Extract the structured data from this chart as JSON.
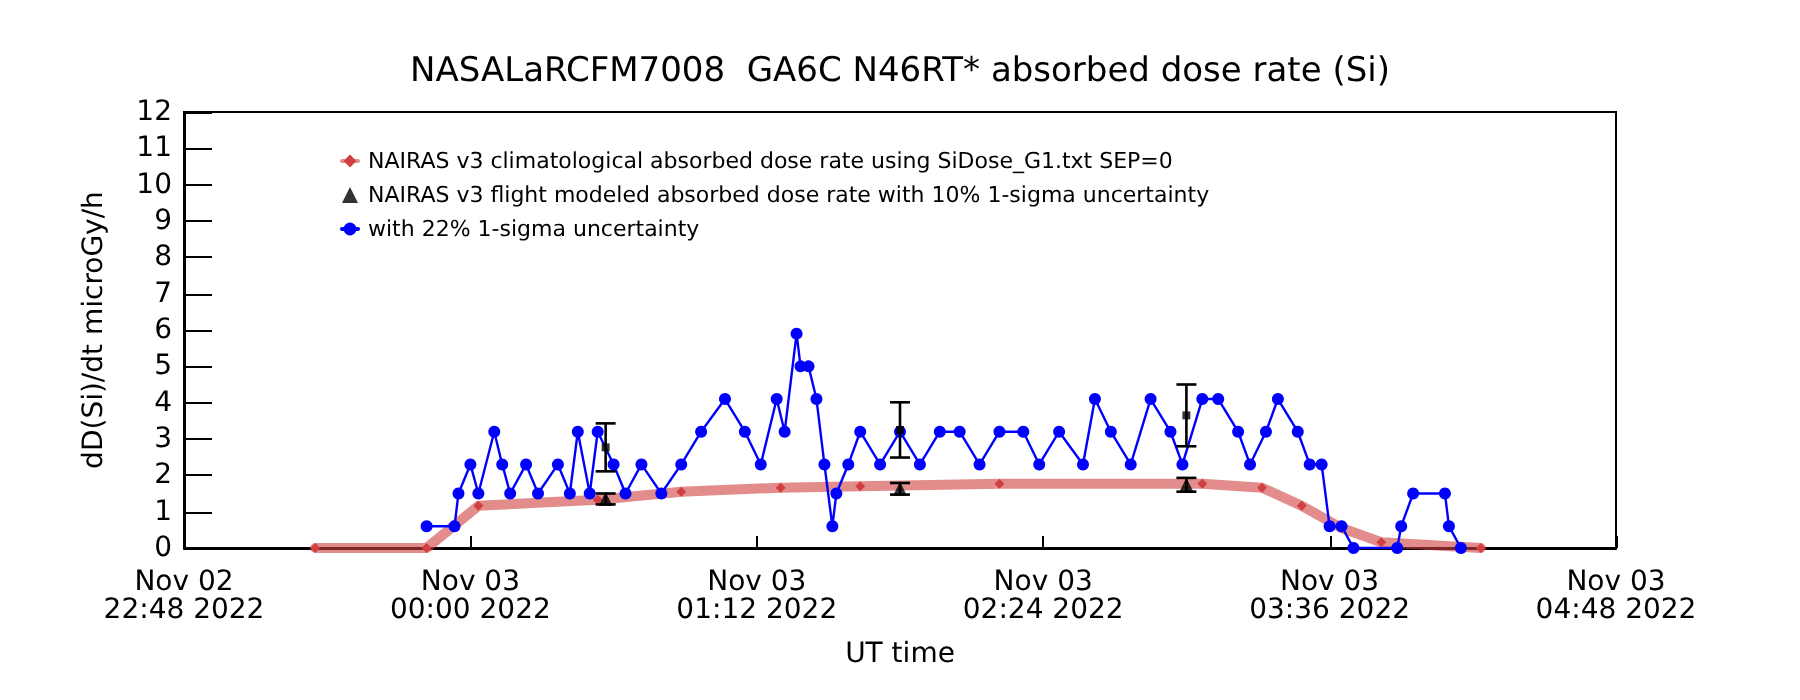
{
  "chart_data": {
    "type": "line",
    "title": "NASALaRCFM7008  GA6C N46RT* absorbed dose rate (Si)",
    "xlabel": "UT time",
    "ylabel": "dD(Si)/dt microGy/h",
    "xlim": [
      "2022-11-02T22:48",
      "2022-11-03T04:48"
    ],
    "xticks": [
      {
        "value": "2022-11-02T22:48",
        "label": "Nov 02\n22:48 2022"
      },
      {
        "value": "2022-11-03T00:00",
        "label": "Nov 03\n00:00 2022"
      },
      {
        "value": "2022-11-03T01:12",
        "label": "Nov 03\n01:12 2022"
      },
      {
        "value": "2022-11-03T02:24",
        "label": "Nov 03\n02:24 2022"
      },
      {
        "value": "2022-11-03T03:36",
        "label": "Nov 03\n03:36 2022"
      },
      {
        "value": "2022-11-03T04:48",
        "label": "Nov 03\n04:48 2022"
      }
    ],
    "ylim": [
      0,
      12
    ],
    "yticks": [
      0,
      1,
      2,
      3,
      4,
      5,
      6,
      7,
      8,
      9,
      10,
      11,
      12
    ],
    "grid": false,
    "legend": "top left",
    "series": [
      {
        "name": "NAIRAS v3 climatological absorbed dose rate using SiDose_G1.txt SEP=0",
        "marker": "diamond",
        "color": "#d04040",
        "x": [
          "2022-11-02T23:21",
          "2022-11-02T23:49",
          "2022-11-03T00:02",
          "2022-11-03T00:32",
          "2022-11-03T00:53",
          "2022-11-03T01:18",
          "2022-11-03T01:38",
          "2022-11-03T02:13",
          "2022-11-03T03:04",
          "2022-11-03T03:19",
          "2022-11-03T03:29",
          "2022-11-03T03:39",
          "2022-11-03T03:49",
          "2022-11-03T04:14"
        ],
        "values": [
          0,
          0,
          1.16,
          1.33,
          1.55,
          1.66,
          1.7,
          1.77,
          1.77,
          1.66,
          1.16,
          0.55,
          0.16,
          0
        ]
      },
      {
        "name": "NAIRAS v3 flight modeled absorbed dose rate with 10% 1-sigma uncertainty",
        "type": "scatter",
        "marker": "triangle",
        "color": "#000000",
        "x": [
          "2022-11-03T00:34",
          "2022-11-03T01:48",
          "2022-11-03T03:00"
        ],
        "values": [
          1.35,
          1.63,
          1.74
        ],
        "errors": [
          0.15,
          0.16,
          0.19
        ]
      },
      {
        "name": "with 22% 1-sigma uncertainty",
        "marker": "circle",
        "color": "#0000ff",
        "x": [
          "2022-11-02T23:49",
          "2022-11-02T23:56",
          "2022-11-02T23:57",
          "2022-11-03T00:00",
          "2022-11-03T00:02",
          "2022-11-03T00:06",
          "2022-11-03T00:08",
          "2022-11-03T00:10",
          "2022-11-03T00:14",
          "2022-11-03T00:17",
          "2022-11-03T00:22",
          "2022-11-03T00:25",
          "2022-11-03T00:27",
          "2022-11-03T00:30",
          "2022-11-03T00:32",
          "2022-11-03T00:36",
          "2022-11-03T00:39",
          "2022-11-03T00:43",
          "2022-11-03T00:48",
          "2022-11-03T00:53",
          "2022-11-03T00:58",
          "2022-11-03T01:04",
          "2022-11-03T01:09",
          "2022-11-03T01:13",
          "2022-11-03T01:17",
          "2022-11-03T01:19",
          "2022-11-03T01:22",
          "2022-11-03T01:23",
          "2022-11-03T01:25",
          "2022-11-03T01:27",
          "2022-11-03T01:29",
          "2022-11-03T01:31",
          "2022-11-03T01:32",
          "2022-11-03T01:35",
          "2022-11-03T01:38",
          "2022-11-03T01:43",
          "2022-11-03T01:48",
          "2022-11-03T01:53",
          "2022-11-03T01:58",
          "2022-11-03T02:03",
          "2022-11-03T02:08",
          "2022-11-03T02:13",
          "2022-11-03T02:19",
          "2022-11-03T02:23",
          "2022-11-03T02:28",
          "2022-11-03T02:34",
          "2022-11-03T02:37",
          "2022-11-03T02:41",
          "2022-11-03T02:46",
          "2022-11-03T02:51",
          "2022-11-03T02:56",
          "2022-11-03T02:59",
          "2022-11-03T03:04",
          "2022-11-03T03:08",
          "2022-11-03T03:13",
          "2022-11-03T03:16",
          "2022-11-03T03:20",
          "2022-11-03T03:23",
          "2022-11-03T03:28",
          "2022-11-03T03:31",
          "2022-11-03T03:34",
          "2022-11-03T03:36",
          "2022-11-03T03:39",
          "2022-11-03T03:42",
          "2022-11-03T03:53",
          "2022-11-03T03:54",
          "2022-11-03T03:57",
          "2022-11-03T04:05",
          "2022-11-03T04:06",
          "2022-11-03T04:09"
        ],
        "values": [
          0.6,
          0.6,
          1.5,
          2.3,
          1.5,
          3.2,
          2.3,
          1.5,
          2.3,
          1.5,
          2.3,
          1.5,
          3.2,
          1.5,
          3.2,
          2.3,
          1.5,
          2.3,
          1.5,
          2.3,
          3.2,
          4.1,
          3.2,
          2.3,
          4.1,
          3.2,
          5.9,
          5.0,
          5.0,
          4.1,
          2.3,
          0.6,
          1.5,
          2.3,
          3.2,
          2.3,
          3.2,
          2.3,
          3.2,
          3.2,
          2.3,
          3.2,
          3.2,
          2.3,
          3.2,
          2.3,
          4.1,
          3.2,
          2.3,
          4.1,
          3.2,
          2.3,
          4.1,
          4.1,
          3.2,
          2.3,
          3.2,
          4.1,
          3.2,
          2.3,
          2.3,
          0.6,
          0.6,
          0,
          0,
          0.6,
          1.5,
          1.5,
          0.6,
          0
        ]
      },
      {
        "type": "scatter",
        "marker": "square",
        "color": "#000000",
        "x": [
          "2022-11-03T00:34",
          "2022-11-03T01:48",
          "2022-11-03T03:00"
        ],
        "values": [
          2.77,
          3.25,
          3.65
        ],
        "errors": [
          0.66,
          0.76,
          0.85
        ]
      }
    ]
  }
}
